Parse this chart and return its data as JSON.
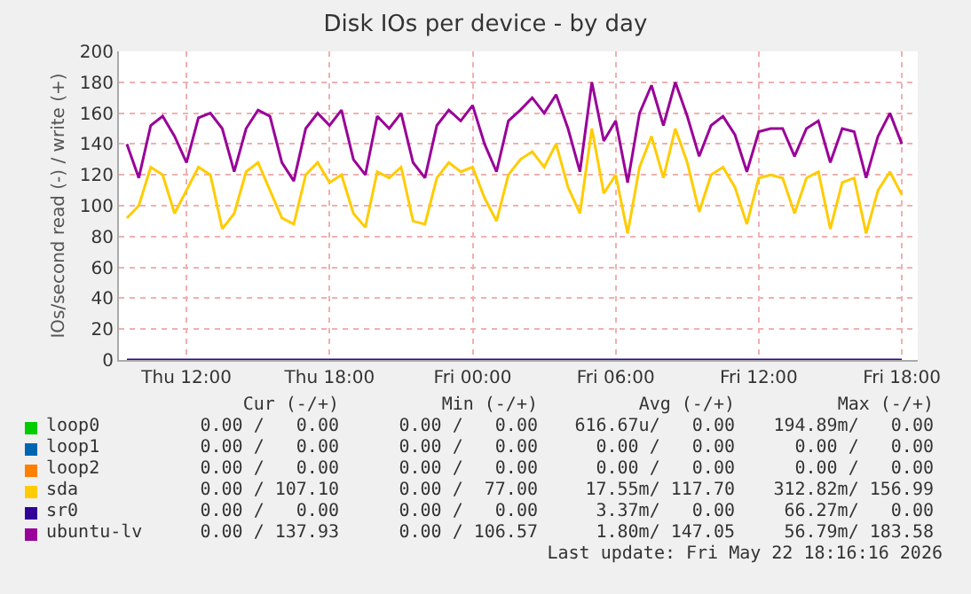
{
  "chart_data": {
    "type": "line",
    "title": "Disk IOs per device - by day",
    "ylabel": "IOs/second read (-) / write (+)",
    "x": [
      "2026-05-21T09:30",
      "2026-05-21T10:00",
      "2026-05-21T10:30",
      "2026-05-21T11:00",
      "2026-05-21T11:30",
      "2026-05-21T12:00",
      "2026-05-21T12:30",
      "2026-05-21T13:00",
      "2026-05-21T13:30",
      "2026-05-21T14:00",
      "2026-05-21T14:30",
      "2026-05-21T15:00",
      "2026-05-21T15:30",
      "2026-05-21T16:00",
      "2026-05-21T16:30",
      "2026-05-21T17:00",
      "2026-05-21T17:30",
      "2026-05-21T18:00",
      "2026-05-21T18:30",
      "2026-05-21T19:00",
      "2026-05-21T19:30",
      "2026-05-21T20:00",
      "2026-05-21T20:30",
      "2026-05-21T21:00",
      "2026-05-21T21:30",
      "2026-05-21T22:00",
      "2026-05-21T22:30",
      "2026-05-21T23:00",
      "2026-05-21T23:30",
      "2026-05-22T00:00",
      "2026-05-22T00:30",
      "2026-05-22T01:00",
      "2026-05-22T01:30",
      "2026-05-22T02:00",
      "2026-05-22T02:30",
      "2026-05-22T03:00",
      "2026-05-22T03:30",
      "2026-05-22T04:00",
      "2026-05-22T04:30",
      "2026-05-22T05:00",
      "2026-05-22T05:30",
      "2026-05-22T06:00",
      "2026-05-22T06:30",
      "2026-05-22T07:00",
      "2026-05-22T07:30",
      "2026-05-22T08:00",
      "2026-05-22T08:30",
      "2026-05-22T09:00",
      "2026-05-22T09:30",
      "2026-05-22T10:00",
      "2026-05-22T10:30",
      "2026-05-22T11:00",
      "2026-05-22T11:30",
      "2026-05-22T12:00",
      "2026-05-22T12:30",
      "2026-05-22T13:00",
      "2026-05-22T13:30",
      "2026-05-22T14:00",
      "2026-05-22T14:30",
      "2026-05-22T15:00",
      "2026-05-22T15:30",
      "2026-05-22T16:00",
      "2026-05-22T16:30",
      "2026-05-22T17:00",
      "2026-05-22T17:30",
      "2026-05-22T18:00"
    ],
    "series": [
      {
        "name": "loop0",
        "color": "#00cc00",
        "values": [
          null,
          null,
          null,
          null,
          null,
          null,
          null,
          null,
          null,
          null,
          null,
          null,
          null,
          null,
          null,
          null,
          null,
          null,
          null,
          null,
          null,
          null,
          null,
          null,
          null,
          null,
          null,
          null,
          null,
          null,
          null,
          null,
          null,
          null,
          null,
          null,
          null,
          null,
          null,
          null,
          null,
          null,
          null,
          null,
          null,
          null,
          null,
          null,
          null,
          null,
          null,
          null,
          null,
          null,
          null,
          null,
          null,
          null,
          null,
          null,
          null,
          null,
          null,
          null,
          null,
          null
        ]
      },
      {
        "name": "loop1",
        "color": "#0066b3",
        "values": [
          null,
          null,
          null,
          null,
          null,
          null,
          null,
          null,
          null,
          null,
          null,
          null,
          null,
          null,
          null,
          null,
          null,
          null,
          null,
          null,
          null,
          null,
          null,
          null,
          null,
          null,
          null,
          null,
          null,
          null,
          null,
          null,
          null,
          null,
          null,
          null,
          null,
          null,
          null,
          null,
          null,
          null,
          null,
          null,
          null,
          null,
          null,
          null,
          null,
          null,
          null,
          null,
          null,
          null,
          null,
          null,
          null,
          null,
          null,
          null,
          null,
          null,
          null,
          null,
          null,
          null
        ]
      },
      {
        "name": "loop2",
        "color": "#ff8000",
        "values": [
          null,
          null,
          null,
          null,
          null,
          null,
          null,
          null,
          null,
          null,
          null,
          null,
          null,
          null,
          null,
          null,
          null,
          null,
          null,
          null,
          null,
          null,
          null,
          null,
          null,
          null,
          null,
          null,
          null,
          null,
          null,
          null,
          null,
          null,
          null,
          null,
          null,
          null,
          null,
          null,
          null,
          null,
          null,
          null,
          null,
          null,
          null,
          null,
          null,
          null,
          null,
          null,
          null,
          null,
          null,
          null,
          null,
          null,
          null,
          null,
          null,
          null,
          null,
          null,
          null,
          null
        ]
      },
      {
        "name": "sda",
        "color": "#ffcc00",
        "values": [
          92,
          100,
          125,
          120,
          95,
          110,
          125,
          120,
          85,
          95,
          122,
          128,
          110,
          92,
          88,
          120,
          128,
          115,
          120,
          95,
          86,
          122,
          118,
          125,
          90,
          88,
          118,
          128,
          122,
          125,
          105,
          90,
          120,
          130,
          135,
          125,
          140,
          112,
          95,
          150,
          108,
          120,
          82,
          125,
          145,
          118,
          150,
          128,
          96,
          120,
          125,
          112,
          88,
          118,
          120,
          118,
          95,
          118,
          122,
          85,
          115,
          118,
          82,
          110,
          122,
          107
        ]
      },
      {
        "name": "sr0",
        "color": "#330099",
        "x": [
          "2026-05-21T09:30",
          "2026-05-22T18:00"
        ],
        "values": [
          0,
          0
        ]
      },
      {
        "name": "ubuntu-lv",
        "color": "#990099",
        "values": [
          140,
          118,
          152,
          158,
          145,
          128,
          157,
          160,
          150,
          122,
          150,
          162,
          158,
          128,
          116,
          150,
          160,
          152,
          162,
          130,
          120,
          158,
          150,
          160,
          128,
          118,
          152,
          162,
          155,
          165,
          140,
          122,
          155,
          162,
          170,
          160,
          172,
          150,
          122,
          180,
          142,
          155,
          115,
          160,
          178,
          152,
          180,
          158,
          132,
          152,
          158,
          146,
          122,
          148,
          150,
          150,
          132,
          150,
          155,
          128,
          150,
          148,
          118,
          145,
          160,
          140
        ]
      }
    ],
    "xlim": [
      "2026-05-21T09:10",
      "2026-05-22T18:40"
    ],
    "xticks": [
      {
        "value": "2026-05-21T12:00",
        "label": "Thu 12:00"
      },
      {
        "value": "2026-05-21T18:00",
        "label": "Thu 18:00"
      },
      {
        "value": "2026-05-22T00:00",
        "label": "Fri 00:00"
      },
      {
        "value": "2026-05-22T06:00",
        "label": "Fri 06:00"
      },
      {
        "value": "2026-05-22T12:00",
        "label": "Fri 12:00"
      },
      {
        "value": "2026-05-22T18:00",
        "label": "Fri 18:00"
      }
    ],
    "ylim": [
      0,
      200
    ],
    "yticks": [
      0,
      20,
      40,
      60,
      80,
      100,
      120,
      140,
      160,
      180,
      200
    ],
    "grid": true,
    "legend": "bottom",
    "marker": "none",
    "line_style": "solid",
    "annotations": [
      "Cur (-/+)",
      "Min (-/+)",
      "Avg (-/+)",
      "Max (-/+)",
      "0.00 /   0.00",
      "0.00 /   0.00",
      "616.67u/   0.00",
      "194.89m/   0.00",
      "0.00 /   0.00",
      "0.00 /   0.00",
      "0.00 /   0.00",
      "0.00 /   0.00",
      "0.00 /   0.00",
      "0.00 /   0.00",
      "0.00 /   0.00",
      "0.00 /   0.00",
      "0.00 / 107.10",
      "0.00 /  77.00",
      "17.55m/ 117.70",
      "312.82m/ 156.99",
      "0.00 /   0.00",
      "0.00 /   0.00",
      "3.37m/   0.00",
      "66.27m/   0.00",
      "0.00 / 137.93",
      "0.00 / 106.57",
      "1.80m/ 147.05",
      "56.79m/ 183.58",
      "Last update: Fri May 22 18:16:16 2026"
    ]
  }
}
